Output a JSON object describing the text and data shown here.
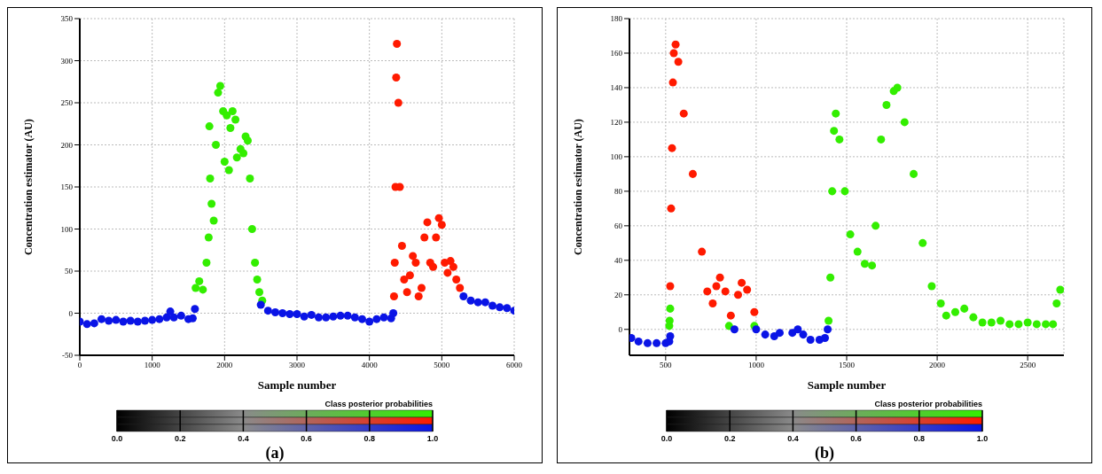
{
  "chart_data": [
    {
      "type": "scatter",
      "xlabel": "Sample number",
      "ylabel": "Concentration estimator (AU)",
      "xlim": [
        0,
        6000
      ],
      "xticks": [
        0,
        1000,
        2000,
        3000,
        4000,
        5000,
        6000
      ],
      "ylim": [
        -50,
        350
      ],
      "yticks": [
        -50,
        0,
        50,
        100,
        150,
        200,
        250,
        300,
        350
      ],
      "grid": true,
      "marker": "circle",
      "clabel": "Class posterior probabilities",
      "clim": [
        0,
        1
      ],
      "cticks": [
        {
          "value": 0,
          "label": "0.0"
        },
        {
          "value": 0.2,
          "label": "0.2"
        },
        {
          "value": 0.4,
          "label": "0.4"
        },
        {
          "value": 0.6,
          "label": "0.6"
        },
        {
          "value": 0.8,
          "label": "0.8"
        },
        {
          "value": 1,
          "label": "1.0"
        }
      ],
      "annotations": [
        "(a)"
      ],
      "series": [
        {
          "color": "#33ee00",
          "x": [
            1600,
            1650,
            1700,
            1750,
            1780,
            1790,
            1800,
            1820,
            1850,
            1880,
            1910,
            1940,
            1980,
            2000,
            2030,
            2060,
            2080,
            2110,
            2150,
            2170,
            2220,
            2260,
            2290,
            2320,
            2350,
            2380,
            2420,
            2450,
            2480,
            2520
          ],
          "values": [
            30,
            38,
            28,
            60,
            90,
            222,
            160,
            130,
            110,
            200,
            262,
            270,
            240,
            180,
            235,
            170,
            220,
            240,
            230,
            185,
            195,
            190,
            210,
            205,
            160,
            100,
            60,
            40,
            25,
            15
          ]
        },
        {
          "color": "#ff1a00",
          "x": [
            4340,
            4350,
            4360,
            4370,
            4380,
            4400,
            4420,
            4450,
            4480,
            4520,
            4560,
            4600,
            4640,
            4680,
            4720,
            4760,
            4800,
            4840,
            4880,
            4920,
            4960,
            5000,
            5040,
            5080,
            5120,
            5160,
            5200,
            5250
          ],
          "values": [
            20,
            60,
            150,
            280,
            320,
            250,
            150,
            80,
            40,
            25,
            45,
            68,
            60,
            20,
            30,
            90,
            108,
            60,
            55,
            90,
            113,
            105,
            60,
            48,
            62,
            55,
            40,
            30
          ]
        },
        {
          "color": "#0a14e6",
          "x": [
            0,
            100,
            200,
            300,
            400,
            500,
            600,
            700,
            800,
            900,
            1000,
            1100,
            1200,
            1250,
            1300,
            1400,
            1500,
            1560,
            1590,
            2500,
            2600,
            2700,
            2800,
            2900,
            3000,
            3100,
            3200,
            3300,
            3400,
            3500,
            3600,
            3700,
            3800,
            3900,
            4000,
            4100,
            4200,
            4300,
            4330,
            5300,
            5400,
            5500,
            5600,
            5700,
            5800,
            5900,
            6000
          ],
          "values": [
            -10,
            -13,
            -12,
            -7,
            -9,
            -8,
            -10,
            -9,
            -10,
            -9,
            -8,
            -7,
            -5,
            2,
            -5,
            -3,
            -7,
            -6,
            5,
            10,
            3,
            1,
            0,
            -1,
            -1,
            -4,
            -2,
            -5,
            -5,
            -4,
            -3,
            -3,
            -5,
            -7,
            -10,
            -7,
            -5,
            -6,
            0,
            20,
            15,
            13,
            13,
            9,
            7,
            6,
            3
          ]
        }
      ]
    },
    {
      "type": "scatter",
      "xlabel": "Sample number",
      "ylabel": "Concentration estimator (AU)",
      "xlim": [
        300,
        2700
      ],
      "xticks": [
        500,
        1000,
        1500,
        2000,
        2500
      ],
      "ylim": [
        -15,
        180
      ],
      "yticks": [
        0,
        20,
        40,
        60,
        80,
        100,
        120,
        140,
        160,
        180
      ],
      "grid": true,
      "marker": "circle",
      "clabel": "Class posterior probabilities",
      "clim": [
        0,
        1
      ],
      "cticks": [
        {
          "value": 0,
          "label": "0.0"
        },
        {
          "value": 0.2,
          "label": "0.2"
        },
        {
          "value": 0.4,
          "label": "0.4"
        },
        {
          "value": 0.6,
          "label": "0.6"
        },
        {
          "value": 0.8,
          "label": "0.8"
        },
        {
          "value": 1,
          "label": "1.0"
        }
      ],
      "annotations": [
        "(b)"
      ],
      "series": [
        {
          "color": "#33ee00",
          "x": [
            520,
            522,
            525,
            850,
            990,
            1400,
            1410,
            1420,
            1430,
            1440,
            1460,
            1490,
            1520,
            1560,
            1600,
            1640,
            1660,
            1690,
            1720,
            1760,
            1780,
            1820,
            1870,
            1920,
            1970,
            2020,
            2050,
            2100,
            2150,
            2200,
            2250,
            2300,
            2350,
            2400,
            2450,
            2500,
            2550,
            2600,
            2640,
            2660,
            2680
          ],
          "values": [
            2,
            5,
            12,
            2,
            2,
            5,
            30,
            80,
            115,
            125,
            110,
            80,
            55,
            45,
            38,
            37,
            60,
            110,
            130,
            138,
            140,
            120,
            90,
            50,
            25,
            15,
            8,
            10,
            12,
            7,
            4,
            4,
            5,
            3,
            3,
            4,
            3,
            3,
            3,
            15,
            23
          ]
        },
        {
          "color": "#ff1a00",
          "x": [
            525,
            530,
            535,
            540,
            545,
            555,
            570,
            600,
            650,
            700,
            730,
            760,
            780,
            800,
            830,
            860,
            900,
            920,
            950,
            990
          ],
          "values": [
            25,
            70,
            105,
            143,
            160,
            165,
            155,
            125,
            90,
            45,
            22,
            15,
            25,
            30,
            22,
            8,
            20,
            27,
            23,
            10
          ]
        },
        {
          "color": "#0a14e6",
          "x": [
            310,
            350,
            400,
            450,
            500,
            520,
            525,
            880,
            1000,
            1050,
            1100,
            1130,
            1200,
            1230,
            1260,
            1300,
            1350,
            1380,
            1395
          ],
          "values": [
            -5,
            -7,
            -8,
            -8,
            -8,
            -7,
            -4,
            0,
            0,
            -3,
            -4,
            -2,
            -2,
            0,
            -3,
            -6,
            -6,
            -5,
            0
          ]
        }
      ]
    }
  ]
}
